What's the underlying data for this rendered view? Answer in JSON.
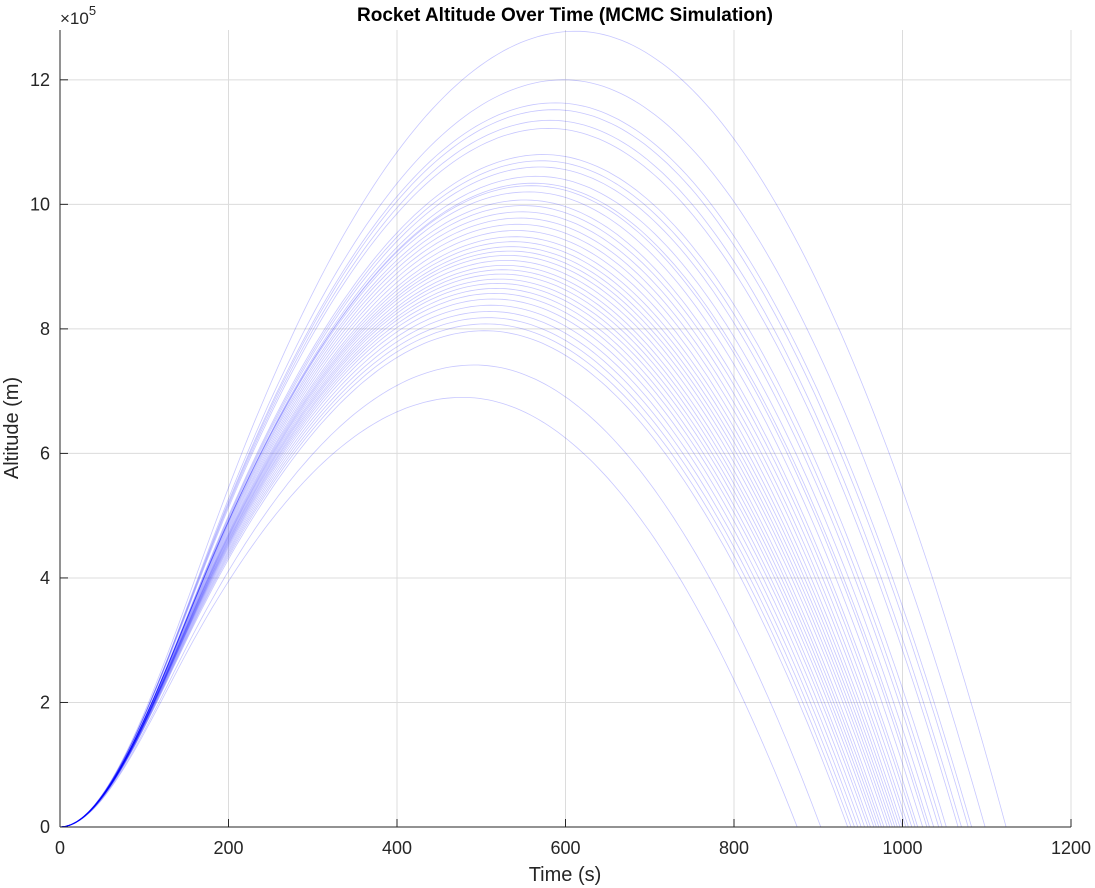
{
  "chart_data": {
    "type": "line",
    "title": "Rocket Altitude Over Time (MCMC Simulation)",
    "xlabel": "Time (s)",
    "ylabel": "Altitude (m)",
    "xlim": [
      0,
      1200
    ],
    "ylim": [
      0,
      1280000
    ],
    "x_ticks": [
      0,
      200,
      400,
      600,
      800,
      1000,
      1200
    ],
    "x_tick_labels": [
      "0",
      "200",
      "400",
      "600",
      "800",
      "1000",
      "1200"
    ],
    "y_ticks": [
      0,
      200000,
      400000,
      600000,
      800000,
      1000000,
      1200000
    ],
    "y_tick_labels": [
      "0",
      "2",
      "4",
      "6",
      "8",
      "10",
      "12"
    ],
    "y_exponent_label": "×10",
    "y_exponent_power": "5",
    "grid": true,
    "line_color": "#0000ff",
    "line_opacity": 0.22,
    "series": [
      {
        "peak_time": 612,
        "peak_altitude": 1278000,
        "landing_time": 1123
      },
      {
        "peak_time": 598,
        "peak_altitude": 1200000,
        "landing_time": 1098
      },
      {
        "peak_time": 588,
        "peak_altitude": 1163000,
        "landing_time": 1082
      },
      {
        "peak_time": 586,
        "peak_altitude": 1152000,
        "landing_time": 1078
      },
      {
        "peak_time": 582,
        "peak_altitude": 1135000,
        "landing_time": 1070
      },
      {
        "peak_time": 580,
        "peak_altitude": 1122000,
        "landing_time": 1066
      },
      {
        "peak_time": 574,
        "peak_altitude": 1080000,
        "landing_time": 1052
      },
      {
        "peak_time": 572,
        "peak_altitude": 1070000,
        "landing_time": 1047
      },
      {
        "peak_time": 570,
        "peak_altitude": 1060000,
        "landing_time": 1043
      },
      {
        "peak_time": 566,
        "peak_altitude": 1045000,
        "landing_time": 1037
      },
      {
        "peak_time": 562,
        "peak_altitude": 1034000,
        "landing_time": 1032
      },
      {
        "peak_time": 560,
        "peak_altitude": 1030000,
        "landing_time": 1029
      },
      {
        "peak_time": 556,
        "peak_altitude": 1020000,
        "landing_time": 1024
      },
      {
        "peak_time": 552,
        "peak_altitude": 1007000,
        "landing_time": 1018
      },
      {
        "peak_time": 550,
        "peak_altitude": 998000,
        "landing_time": 1015
      },
      {
        "peak_time": 548,
        "peak_altitude": 988000,
        "landing_time": 1011
      },
      {
        "peak_time": 546,
        "peak_altitude": 978000,
        "landing_time": 1007
      },
      {
        "peak_time": 544,
        "peak_altitude": 968000,
        "landing_time": 1004
      },
      {
        "peak_time": 542,
        "peak_altitude": 958000,
        "landing_time": 1000
      },
      {
        "peak_time": 540,
        "peak_altitude": 948000,
        "landing_time": 997
      },
      {
        "peak_time": 538,
        "peak_altitude": 940000,
        "landing_time": 994
      },
      {
        "peak_time": 536,
        "peak_altitude": 932000,
        "landing_time": 991
      },
      {
        "peak_time": 534,
        "peak_altitude": 925000,
        "landing_time": 988
      },
      {
        "peak_time": 532,
        "peak_altitude": 918000,
        "landing_time": 985
      },
      {
        "peak_time": 530,
        "peak_altitude": 910000,
        "landing_time": 982
      },
      {
        "peak_time": 528,
        "peak_altitude": 902000,
        "landing_time": 978
      },
      {
        "peak_time": 526,
        "peak_altitude": 895000,
        "landing_time": 975
      },
      {
        "peak_time": 524,
        "peak_altitude": 888000,
        "landing_time": 972
      },
      {
        "peak_time": 522,
        "peak_altitude": 880000,
        "landing_time": 969
      },
      {
        "peak_time": 520,
        "peak_altitude": 873000,
        "landing_time": 966
      },
      {
        "peak_time": 518,
        "peak_altitude": 865000,
        "landing_time": 962
      },
      {
        "peak_time": 516,
        "peak_altitude": 857000,
        "landing_time": 959
      },
      {
        "peak_time": 514,
        "peak_altitude": 848000,
        "landing_time": 955
      },
      {
        "peak_time": 512,
        "peak_altitude": 838000,
        "landing_time": 951
      },
      {
        "peak_time": 510,
        "peak_altitude": 828000,
        "landing_time": 947
      },
      {
        "peak_time": 508,
        "peak_altitude": 818000,
        "landing_time": 943
      },
      {
        "peak_time": 506,
        "peak_altitude": 808000,
        "landing_time": 939
      },
      {
        "peak_time": 504,
        "peak_altitude": 797000,
        "landing_time": 935
      },
      {
        "peak_time": 492,
        "peak_altitude": 742000,
        "landing_time": 903
      },
      {
        "peak_time": 478,
        "peak_altitude": 690000,
        "landing_time": 875
      }
    ]
  }
}
